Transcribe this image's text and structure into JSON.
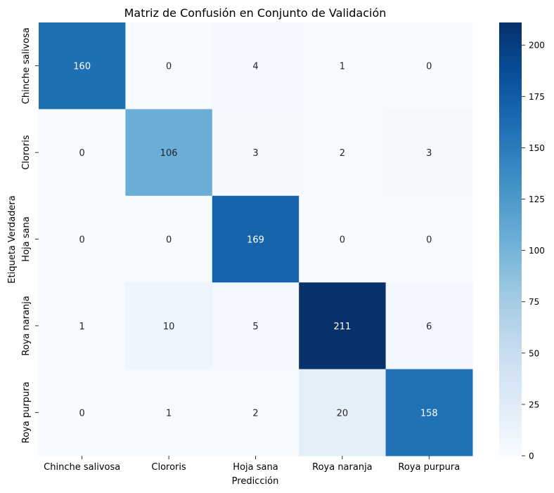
{
  "chart_data": {
    "type": "heatmap",
    "title": "Matriz de Confusión en Conjunto de Validación",
    "xlabel": "Predicción",
    "ylabel": "Etiqueta Verdadera",
    "row_labels": [
      "Chinche salivosa",
      "Clororis",
      "Hoja sana",
      "Roya naranja",
      "Roya purpura"
    ],
    "col_labels": [
      "Chinche salivosa",
      "Clororis",
      "Hoja sana",
      "Roya naranja",
      "Roya purpura"
    ],
    "values": [
      [
        160,
        0,
        4,
        1,
        0
      ],
      [
        0,
        106,
        3,
        2,
        3
      ],
      [
        0,
        0,
        169,
        0,
        0
      ],
      [
        1,
        10,
        5,
        211,
        6
      ],
      [
        0,
        1,
        2,
        20,
        158
      ]
    ],
    "colormap": "Blues",
    "vmin": 0,
    "vmax": 211,
    "colorbar_ticks": [
      0,
      25,
      50,
      75,
      100,
      125,
      150,
      175,
      200
    ]
  }
}
